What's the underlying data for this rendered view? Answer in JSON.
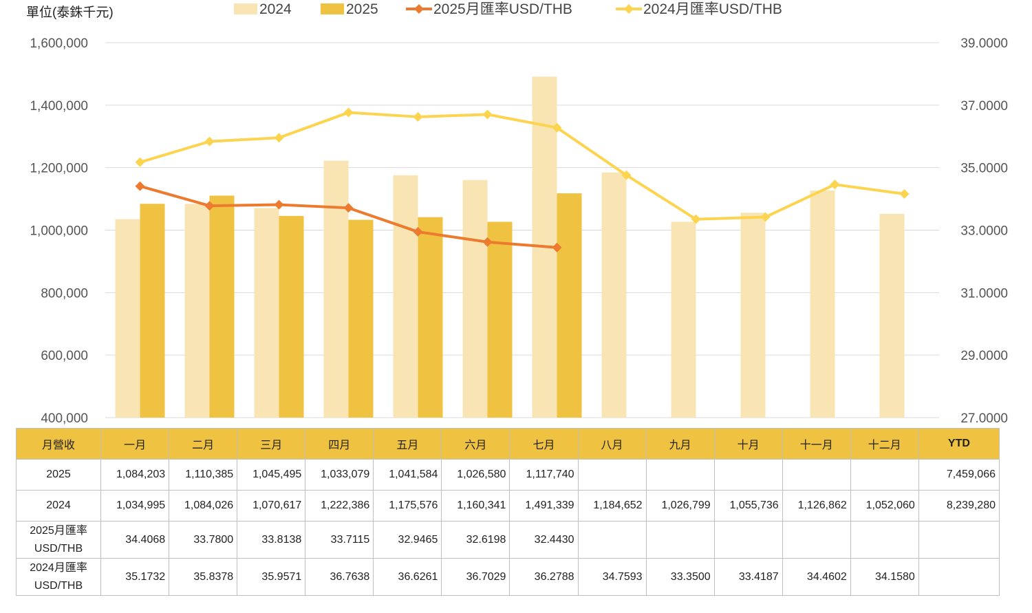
{
  "unit_label": "單位(泰銖千元)",
  "legend": [
    "2024",
    "2025",
    "2025月匯率USD/THB",
    "2024月匯率USD/THB"
  ],
  "colors": {
    "bar2024": "#f9e5b3",
    "bar2025": "#f0c242",
    "line2025": "#ec7a2f",
    "line2024": "#fcd44f",
    "grid": "#d9d9d9",
    "header": "#f0c242"
  },
  "chart_data": {
    "type": "bar",
    "categories": [
      "一月",
      "二月",
      "三月",
      "四月",
      "五月",
      "六月",
      "七月",
      "八月",
      "九月",
      "十月",
      "十一月",
      "十二月"
    ],
    "series": [
      {
        "name": "2024",
        "kind": "bar",
        "axis": "left",
        "values": [
          1034995,
          1084026,
          1070617,
          1222386,
          1175576,
          1160341,
          1491339,
          1184652,
          1026799,
          1055736,
          1126862,
          1052060
        ]
      },
      {
        "name": "2025",
        "kind": "bar",
        "axis": "left",
        "values": [
          1084203,
          1110385,
          1045495,
          1033079,
          1041584,
          1026580,
          1117740,
          null,
          null,
          null,
          null,
          null
        ]
      },
      {
        "name": "2025月匯率USD/THB",
        "kind": "line",
        "axis": "right",
        "values": [
          34.4068,
          33.78,
          33.8138,
          33.7115,
          32.9465,
          32.6198,
          32.443,
          null,
          null,
          null,
          null,
          null
        ]
      },
      {
        "name": "2024月匯率USD/THB",
        "kind": "line",
        "axis": "right",
        "values": [
          35.1732,
          35.8378,
          35.9571,
          36.7638,
          36.6261,
          36.7029,
          36.2788,
          34.7593,
          33.35,
          33.4187,
          34.4602,
          34.158
        ]
      }
    ],
    "ylim_left": [
      400000,
      1600000
    ],
    "ylim_right": [
      27,
      39
    ],
    "left_ticks": [
      "400,000",
      "600,000",
      "800,000",
      "1,000,000",
      "1,200,000",
      "1,400,000",
      "1,600,000"
    ],
    "right_ticks": [
      "27.0000",
      "29.0000",
      "31.0000",
      "33.0000",
      "35.0000",
      "37.0000",
      "39.0000"
    ],
    "grid": true,
    "legend_position": "top"
  },
  "table": {
    "header": [
      "月營收",
      "一月",
      "二月",
      "三月",
      "四月",
      "五月",
      "六月",
      "七月",
      "八月",
      "九月",
      "十月",
      "十一月",
      "十二月",
      "YTD"
    ],
    "rows": [
      {
        "label": "2025",
        "cells": [
          "1,084,203",
          "1,110,385",
          "1,045,495",
          "1,033,079",
          "1,041,584",
          "1,026,580",
          "1,117,740",
          "",
          "",
          "",
          "",
          "",
          "7,459,066"
        ]
      },
      {
        "label": "2024",
        "cells": [
          "1,034,995",
          "1,084,026",
          "1,070,617",
          "1,222,386",
          "1,175,576",
          "1,160,341",
          "1,491,339",
          "1,184,652",
          "1,026,799",
          "1,055,736",
          "1,126,862",
          "1,052,060",
          "8,239,280"
        ]
      },
      {
        "label": "2025月匯率 USD/THB",
        "cells": [
          "34.4068",
          "33.7800",
          "33.8138",
          "33.7115",
          "32.9465",
          "32.6198",
          "32.4430",
          "",
          "",
          "",
          "",
          "",
          ""
        ]
      },
      {
        "label": "2024月匯率 USD/THB",
        "cells": [
          "35.1732",
          "35.8378",
          "35.9571",
          "36.7638",
          "36.6261",
          "36.7029",
          "36.2788",
          "34.7593",
          "33.3500",
          "33.4187",
          "34.4602",
          "34.1580",
          ""
        ]
      }
    ]
  }
}
